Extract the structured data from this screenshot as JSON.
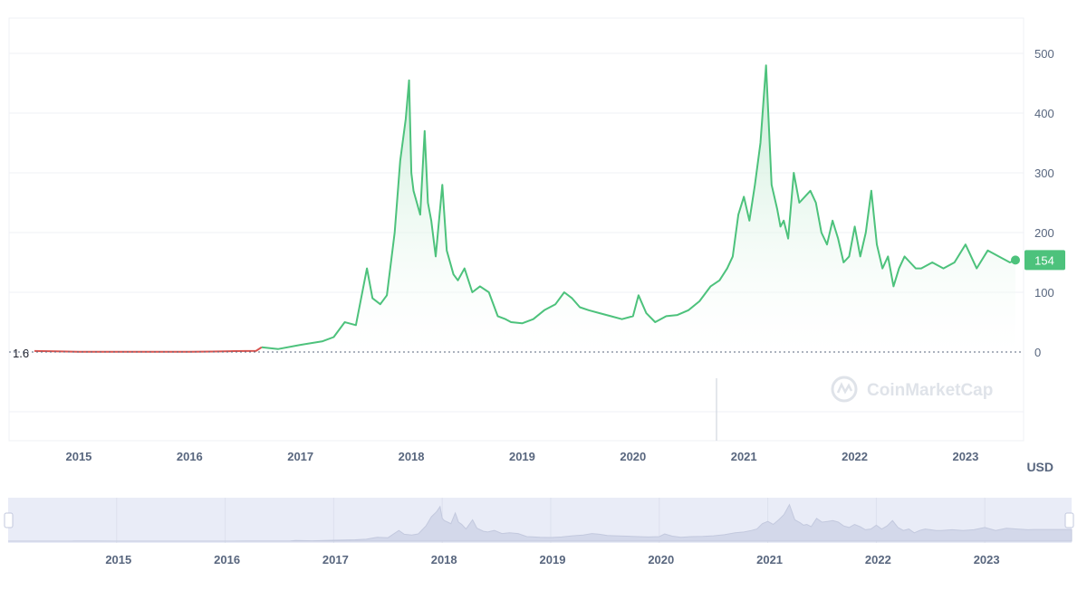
{
  "chart_data": {
    "type": "area",
    "currency_label": "USD",
    "first_price_label": "1.6",
    "current_price_label": "154",
    "watermark": "CoinMarketCap",
    "ylim": [
      0,
      500
    ],
    "y_ticks": [
      0,
      100,
      200,
      300,
      400,
      500
    ],
    "x_ticks": [
      "2015",
      "2016",
      "2017",
      "2018",
      "2019",
      "2020",
      "2021",
      "2022",
      "2023"
    ],
    "navigator_ticks": [
      "2015",
      "2016",
      "2017",
      "2018",
      "2019",
      "2020",
      "2021",
      "2022",
      "2023"
    ],
    "colors": {
      "line_up": "#4dc27c",
      "line_flat": "#d9534f",
      "area_top": "#bfe9cf",
      "grid": "#eff1f5",
      "axis_text": "#58667e",
      "label_bg": "#4dc27c",
      "navigator_bg": "#e9ecf7",
      "navigator_fill": "#d3d8ea"
    },
    "series": [
      {
        "x": [
          2014.6,
          2014.8,
          2015.0,
          2015.2,
          2015.4,
          2015.6,
          2015.8,
          2016.0,
          2016.2,
          2016.4,
          2016.6,
          2016.65,
          2016.8,
          2017.0,
          2017.2,
          2017.3,
          2017.4,
          2017.5,
          2017.6,
          2017.65,
          2017.72,
          2017.78,
          2017.85,
          2017.9,
          2017.95,
          2017.98,
          2018.0,
          2018.02,
          2018.05,
          2018.08,
          2018.12,
          2018.15,
          2018.18,
          2018.22,
          2018.28,
          2018.32,
          2018.38,
          2018.42,
          2018.48,
          2018.55,
          2018.62,
          2018.7,
          2018.78,
          2018.85,
          2018.9,
          2019.0,
          2019.1,
          2019.2,
          2019.3,
          2019.38,
          2019.45,
          2019.52,
          2019.6,
          2019.7,
          2019.8,
          2019.9,
          2020.0,
          2020.05,
          2020.12,
          2020.2,
          2020.3,
          2020.4,
          2020.5,
          2020.6,
          2020.7,
          2020.78,
          2020.85,
          2020.9,
          2020.95,
          2021.0,
          2021.05,
          2021.1,
          2021.15,
          2021.2,
          2021.25,
          2021.3,
          2021.33,
          2021.36,
          2021.4,
          2021.45,
          2021.5,
          2021.55,
          2021.6,
          2021.65,
          2021.7,
          2021.75,
          2021.8,
          2021.85,
          2021.9,
          2021.95,
          2022.0,
          2022.05,
          2022.1,
          2022.15,
          2022.2,
          2022.25,
          2022.3,
          2022.35,
          2022.4,
          2022.45,
          2022.5,
          2022.55,
          2022.6,
          2022.7,
          2022.8,
          2022.9,
          2023.0,
          2023.1,
          2023.2,
          2023.3,
          2023.4,
          2023.45
        ],
        "values": [
          1.6,
          1.0,
          0.5,
          0.5,
          0.5,
          0.5,
          0.5,
          0.5,
          0.8,
          1.5,
          2.0,
          8,
          5,
          12,
          18,
          25,
          50,
          45,
          140,
          90,
          80,
          95,
          200,
          320,
          390,
          455,
          300,
          270,
          250,
          230,
          370,
          250,
          220,
          160,
          280,
          170,
          130,
          120,
          140,
          100,
          110,
          100,
          60,
          55,
          50,
          48,
          55,
          70,
          80,
          100,
          90,
          75,
          70,
          65,
          60,
          55,
          60,
          95,
          65,
          50,
          60,
          62,
          70,
          85,
          110,
          120,
          140,
          160,
          230,
          260,
          220,
          280,
          350,
          480,
          280,
          240,
          210,
          220,
          190,
          300,
          250,
          260,
          270,
          250,
          200,
          180,
          220,
          190,
          150,
          160,
          210,
          160,
          200,
          270,
          180,
          140,
          160,
          110,
          140,
          160,
          150,
          140,
          140,
          150,
          140,
          150,
          180,
          140,
          170,
          160,
          150,
          154
        ]
      }
    ]
  }
}
